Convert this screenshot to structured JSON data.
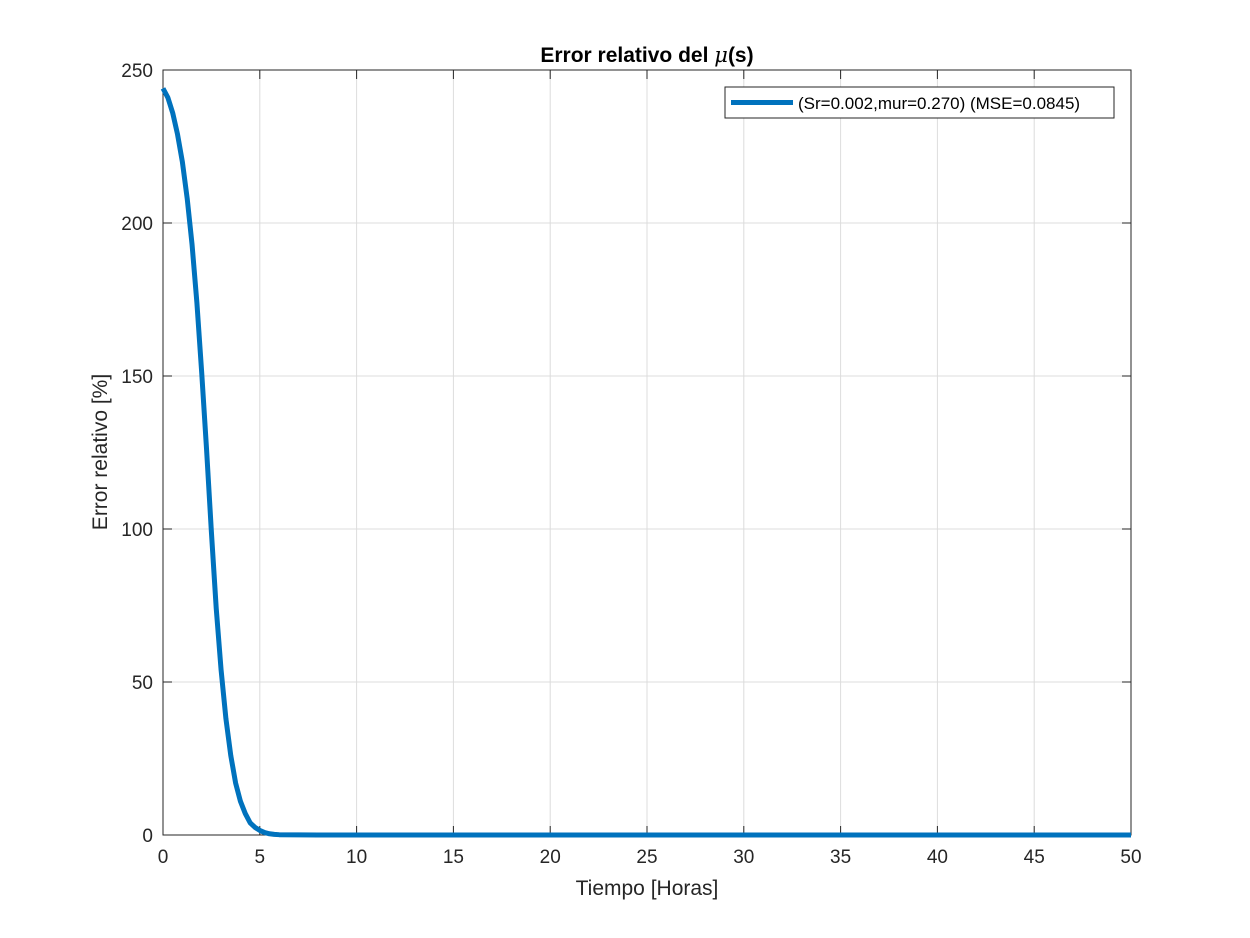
{
  "chart_data": {
    "type": "line",
    "title_prefix": "Error relativo del ",
    "title_symbol": "μ",
    "title_suffix": "(s)",
    "xlabel": "Tiempo [Horas]",
    "ylabel": "Error relativo [%]",
    "xlim": [
      0,
      50
    ],
    "ylim": [
      0,
      250
    ],
    "xticks": [
      0,
      5,
      10,
      15,
      20,
      25,
      30,
      35,
      40,
      45,
      50
    ],
    "yticks": [
      0,
      50,
      100,
      150,
      200,
      250
    ],
    "grid": true,
    "legend_position": "top-right",
    "series": [
      {
        "name": "(Sr=0.002,mur=0.270) (MSE=0.0845)",
        "color": "#0072BD",
        "x": [
          0,
          0.25,
          0.5,
          0.75,
          1.0,
          1.25,
          1.5,
          1.75,
          2.0,
          2.25,
          2.5,
          2.75,
          3.0,
          3.25,
          3.5,
          3.75,
          4.0,
          4.25,
          4.5,
          4.75,
          5.0,
          5.25,
          5.5,
          5.75,
          6.0,
          8,
          10,
          15,
          20,
          25,
          30,
          35,
          40,
          45,
          50
        ],
        "y": [
          244,
          241,
          236,
          229,
          220,
          208,
          193,
          174,
          151,
          126,
          99,
          74,
          54,
          38,
          26,
          17,
          11,
          7,
          4,
          2.5,
          1.5,
          0.8,
          0.4,
          0.2,
          0.1,
          0,
          0,
          0,
          0,
          0,
          0,
          0,
          0,
          0,
          0
        ]
      }
    ]
  }
}
